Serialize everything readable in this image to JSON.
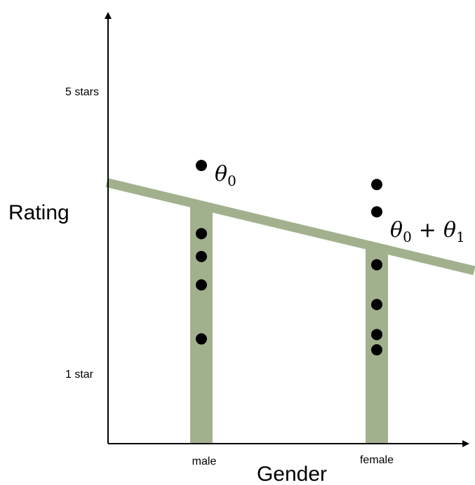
{
  "chart_data": {
    "type": "scatter",
    "categories": [
      "male",
      "female"
    ],
    "xlabel": "Gender",
    "ylabel": "Rating",
    "y_ticks": [
      {
        "label": "5 stars",
        "value": 5
      },
      {
        "label": "1 star",
        "value": 1
      }
    ],
    "ylim": [
      -0.5,
      7.35
    ],
    "grid": false,
    "points": [
      {
        "category": "male",
        "y": 4.6
      },
      {
        "category": "male",
        "y": 3.35
      },
      {
        "category": "male",
        "y": 2.93
      },
      {
        "category": "male",
        "y": 2.41
      },
      {
        "category": "male",
        "y": 1.42
      },
      {
        "category": "female",
        "y": 4.25
      },
      {
        "category": "female",
        "y": 3.75
      },
      {
        "category": "female",
        "y": 2.78
      },
      {
        "category": "female",
        "y": 2.05
      },
      {
        "category": "female",
        "y": 1.5
      },
      {
        "category": "female",
        "y": 1.22
      }
    ],
    "regression_line": {
      "y_at_male": 3.87,
      "y_at_female": 3.1,
      "labels": {
        "male": {
          "base": "θ",
          "sub": "0"
        },
        "female": {
          "base": "θ",
          "sub": "0",
          "op": "+",
          "base2": "θ",
          "sub2": "1"
        }
      },
      "color": "#a1b18d"
    },
    "bar_color": "#a1b18d",
    "point_color": "#000000"
  }
}
